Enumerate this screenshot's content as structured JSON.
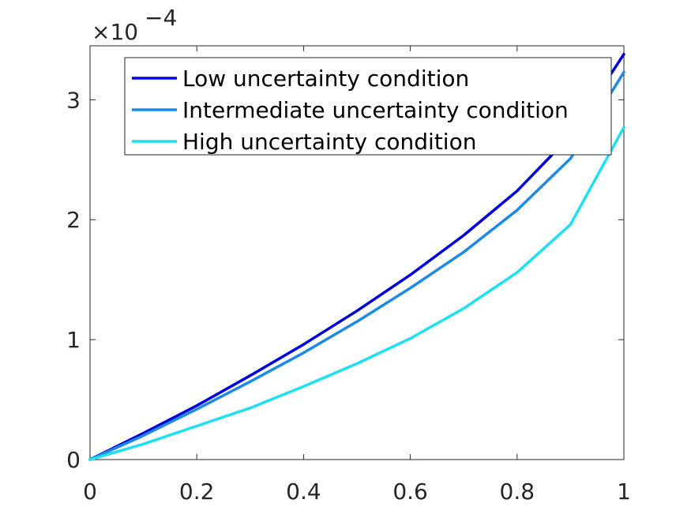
{
  "chart_data": {
    "type": "line",
    "title": "",
    "xlabel": "",
    "ylabel": "",
    "xlim": [
      0,
      1
    ],
    "ylim": [
      0,
      3.45
    ],
    "y_exponent_label": "×10",
    "y_exponent_power": "−4",
    "xticks": [
      "0",
      "0.2",
      "0.4",
      "0.6",
      "0.8",
      "1"
    ],
    "xtick_values": [
      0,
      0.2,
      0.4,
      0.6,
      0.8,
      1
    ],
    "yticks": [
      "0",
      "1",
      "2",
      "3"
    ],
    "ytick_values": [
      0,
      1,
      2,
      3
    ],
    "grid": false,
    "legend_position": "top-right",
    "x": [
      0,
      0.1,
      0.2,
      0.3,
      0.4,
      0.5,
      0.6,
      0.7,
      0.8,
      0.9,
      1.0
    ],
    "series": [
      {
        "name": "Low uncertainty condition",
        "color": "#0000dd",
        "values": [
          0,
          0.22,
          0.45,
          0.7,
          0.96,
          1.24,
          1.54,
          1.87,
          2.24,
          2.7,
          3.38
        ]
      },
      {
        "name": "Intermediate uncertainty condition",
        "color": "#1a8ae6",
        "values": [
          0,
          0.2,
          0.42,
          0.65,
          0.89,
          1.15,
          1.43,
          1.73,
          2.08,
          2.51,
          3.23
        ]
      },
      {
        "name": "High uncertainty condition",
        "color": "#1ee0f0",
        "values": [
          0,
          0.13,
          0.28,
          0.43,
          0.61,
          0.8,
          1.01,
          1.26,
          1.56,
          1.96,
          2.77
        ]
      }
    ]
  }
}
